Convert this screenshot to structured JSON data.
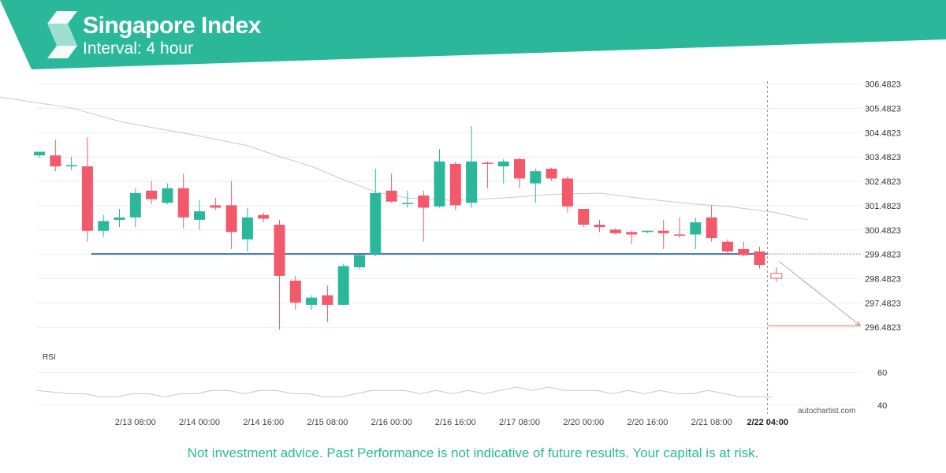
{
  "header": {
    "title": "Singapore Index",
    "subtitle": "Interval: 4 hour"
  },
  "footer": {
    "disclaimer": "Not investment advice. Past Performance is not indicative of future results. Your capital is at risk."
  },
  "watermark": "autochartist.com",
  "colors": {
    "brand": "#2bb89a",
    "up": "#2bb89a",
    "down": "#f25a6c",
    "support": "#3a6fb5",
    "target": "#f07050",
    "moving_average": "#c8c8c8",
    "rsi": "#c8c8c8"
  },
  "chart_data": [
    {
      "type": "candlestick",
      "ylim": [
        296.1,
        306.6
      ],
      "y_ticks": [
        "306.4823",
        "305.4823",
        "304.4823",
        "303.4823",
        "302.4823",
        "301.4823",
        "300.4823",
        "299.4823",
        "298.4823",
        "297.4823",
        "296.4823"
      ],
      "y_tick_values": [
        306.4823,
        305.4823,
        304.4823,
        303.4823,
        302.4823,
        301.4823,
        300.4823,
        299.4823,
        298.4823,
        297.4823,
        296.4823
      ],
      "x_ticks": [
        "2/13 08:00",
        "2/14 00:00",
        "2/14 16:00",
        "2/15 08:00",
        "2/16 00:00",
        "2/16 16:00",
        "2/17 08:00",
        "2/20 00:00",
        "2/20 16:00",
        "2/21 08:00",
        "2/22 04:00"
      ],
      "x_tick_index": [
        6,
        10,
        14,
        18,
        22,
        26,
        30,
        34,
        38,
        42,
        45.5
      ],
      "highlighted_tick": "2/22 04:00",
      "candles": [
        {
          "o": 303.55,
          "h": 303.7,
          "l": 303.45,
          "c": 303.7
        },
        {
          "o": 303.55,
          "h": 304.2,
          "l": 302.9,
          "c": 303.1
        },
        {
          "o": 303.1,
          "h": 303.5,
          "l": 302.95,
          "c": 303.15
        },
        {
          "o": 303.1,
          "h": 304.3,
          "l": 300.0,
          "c": 300.45
        },
        {
          "o": 300.45,
          "h": 301.1,
          "l": 300.2,
          "c": 300.85
        },
        {
          "o": 300.9,
          "h": 301.35,
          "l": 300.6,
          "c": 301.0
        },
        {
          "o": 301.0,
          "h": 302.2,
          "l": 300.6,
          "c": 302.0
        },
        {
          "o": 302.1,
          "h": 302.5,
          "l": 301.55,
          "c": 301.75
        },
        {
          "o": 301.6,
          "h": 302.4,
          "l": 301.55,
          "c": 302.2
        },
        {
          "o": 302.2,
          "h": 302.8,
          "l": 300.55,
          "c": 301.0
        },
        {
          "o": 300.9,
          "h": 301.7,
          "l": 300.5,
          "c": 301.25
        },
        {
          "o": 301.5,
          "h": 301.8,
          "l": 301.3,
          "c": 301.4
        },
        {
          "o": 301.5,
          "h": 302.5,
          "l": 299.7,
          "c": 300.4
        },
        {
          "o": 300.1,
          "h": 301.4,
          "l": 299.6,
          "c": 301.0
        },
        {
          "o": 301.1,
          "h": 301.2,
          "l": 300.8,
          "c": 300.95
        },
        {
          "o": 300.7,
          "h": 300.9,
          "l": 296.4,
          "c": 298.6
        },
        {
          "o": 298.4,
          "h": 298.6,
          "l": 297.2,
          "c": 297.5
        },
        {
          "o": 297.4,
          "h": 297.8,
          "l": 297.2,
          "c": 297.7
        },
        {
          "o": 297.8,
          "h": 298.2,
          "l": 296.7,
          "c": 297.4
        },
        {
          "o": 297.4,
          "h": 299.1,
          "l": 297.4,
          "c": 299.0
        },
        {
          "o": 298.95,
          "h": 299.5,
          "l": 298.85,
          "c": 299.45
        },
        {
          "o": 299.5,
          "h": 303.0,
          "l": 299.4,
          "c": 302.0
        },
        {
          "o": 302.1,
          "h": 302.8,
          "l": 301.6,
          "c": 301.65
        },
        {
          "o": 301.6,
          "h": 302.1,
          "l": 301.4,
          "c": 301.6
        },
        {
          "o": 301.9,
          "h": 302.1,
          "l": 300.0,
          "c": 301.4
        },
        {
          "o": 301.45,
          "h": 303.8,
          "l": 301.4,
          "c": 303.3
        },
        {
          "o": 303.2,
          "h": 303.3,
          "l": 301.3,
          "c": 301.5
        },
        {
          "o": 301.6,
          "h": 304.75,
          "l": 301.4,
          "c": 303.3
        },
        {
          "o": 303.25,
          "h": 303.3,
          "l": 302.2,
          "c": 303.2
        },
        {
          "o": 303.1,
          "h": 303.4,
          "l": 302.4,
          "c": 303.3
        },
        {
          "o": 303.4,
          "h": 303.45,
          "l": 302.2,
          "c": 302.6
        },
        {
          "o": 302.4,
          "h": 303.0,
          "l": 301.6,
          "c": 302.9
        },
        {
          "o": 303.0,
          "h": 303.05,
          "l": 302.5,
          "c": 302.6
        },
        {
          "o": 302.6,
          "h": 302.7,
          "l": 301.2,
          "c": 301.45
        },
        {
          "o": 301.35,
          "h": 301.35,
          "l": 300.6,
          "c": 300.7
        },
        {
          "o": 300.7,
          "h": 300.9,
          "l": 300.4,
          "c": 300.6
        },
        {
          "o": 300.5,
          "h": 300.55,
          "l": 300.3,
          "c": 300.35
        },
        {
          "o": 300.4,
          "h": 300.45,
          "l": 299.9,
          "c": 300.3
        },
        {
          "o": 300.4,
          "h": 300.45,
          "l": 300.35,
          "c": 300.45
        },
        {
          "o": 300.45,
          "h": 300.9,
          "l": 299.7,
          "c": 300.35
        },
        {
          "o": 300.3,
          "h": 301.0,
          "l": 300.15,
          "c": 300.25
        },
        {
          "o": 300.3,
          "h": 301.0,
          "l": 299.7,
          "c": 300.8
        },
        {
          "o": 301.0,
          "h": 301.5,
          "l": 300.0,
          "c": 300.15
        },
        {
          "o": 300.0,
          "h": 300.1,
          "l": 299.45,
          "c": 299.6
        },
        {
          "o": 299.7,
          "h": 300.0,
          "l": 299.4,
          "c": 299.45
        },
        {
          "o": 299.6,
          "h": 299.8,
          "l": 298.9,
          "c": 299.05
        }
      ],
      "forecast_candle": {
        "o": 298.7,
        "h": 298.95,
        "l": 298.35,
        "c": 298.5
      },
      "moving_average": [
        {
          "i": -3,
          "v": 306.0
        },
        {
          "i": 2,
          "v": 305.5
        },
        {
          "i": 5,
          "v": 304.95
        },
        {
          "i": 7,
          "v": 304.7
        },
        {
          "i": 10,
          "v": 304.35
        },
        {
          "i": 13,
          "v": 303.95
        },
        {
          "i": 15,
          "v": 303.5
        },
        {
          "i": 17,
          "v": 303.1
        },
        {
          "i": 19,
          "v": 302.55
        },
        {
          "i": 21,
          "v": 302.05
        },
        {
          "i": 23,
          "v": 301.8
        },
        {
          "i": 26,
          "v": 301.7
        },
        {
          "i": 29,
          "v": 301.8
        },
        {
          "i": 32,
          "v": 301.95
        },
        {
          "i": 35,
          "v": 302.0
        },
        {
          "i": 38,
          "v": 301.75
        },
        {
          "i": 41,
          "v": 301.55
        },
        {
          "i": 43,
          "v": 301.45
        },
        {
          "i": 46,
          "v": 301.2
        },
        {
          "i": 48,
          "v": 300.9
        }
      ],
      "support_level": {
        "value": 299.5,
        "from_index": 3,
        "to_index": 45.5
      },
      "current_price_line": 299.5,
      "projection": {
        "from_index": 46.2,
        "from_value": 299.2,
        "to_index": 51.3,
        "to_value": 296.55
      },
      "target_level": {
        "value": 296.55,
        "from_index": 45.5,
        "to_index": 51.3
      },
      "time_marker_index": 45.5
    },
    {
      "type": "line",
      "title": "RSI",
      "ylim": [
        37,
        67
      ],
      "y_ticks": [
        "60",
        "40"
      ],
      "y_tick_values": [
        60,
        40
      ],
      "values": [
        49,
        48,
        47,
        47,
        45,
        45,
        47,
        47,
        45,
        47,
        47,
        49,
        49,
        47,
        49,
        49,
        47,
        47,
        45,
        45,
        47,
        49,
        49,
        49,
        47,
        49,
        47,
        49,
        47,
        49,
        51,
        49,
        51,
        49,
        49,
        49,
        47,
        49,
        47,
        49,
        47,
        47,
        49,
        47,
        45,
        45,
        45
      ]
    }
  ]
}
